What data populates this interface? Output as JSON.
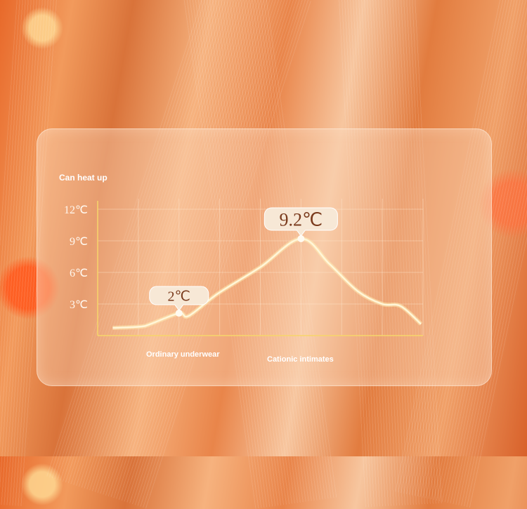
{
  "chart_data": {
    "type": "line",
    "title": "Can heat up",
    "y_ticks": [
      "3℃",
      "6℃",
      "9℃",
      "12℃"
    ],
    "y_tick_values": [
      3,
      6,
      9,
      12
    ],
    "ylim": [
      0,
      13
    ],
    "xlim": [
      0,
      8
    ],
    "grid": true,
    "x_labels": [
      {
        "text": "Ordinary underwear",
        "x": 2.0
      },
      {
        "text": "Cationic intimates",
        "x": 5.0
      }
    ],
    "series": [
      {
        "points": [
          [
            0.37,
            0.73
          ],
          [
            1.05,
            0.85
          ],
          [
            1.3,
            1.1
          ],
          [
            2.0,
            2.13
          ],
          [
            2.24,
            1.87
          ],
          [
            2.96,
            4.0
          ],
          [
            4.0,
            6.5
          ],
          [
            5.0,
            9.2
          ],
          [
            5.7,
            6.8
          ],
          [
            6.4,
            4.2
          ],
          [
            7.0,
            3.0
          ],
          [
            7.45,
            2.8
          ],
          [
            7.95,
            1.1
          ]
        ],
        "color": "#fff6d8"
      }
    ],
    "annotations": [
      {
        "text": "2℃",
        "x": 2.0,
        "y": 2.13
      },
      {
        "text": "9.2℃",
        "x": 5.0,
        "y": 9.2
      }
    ],
    "axis_color": "#f7d66a"
  }
}
